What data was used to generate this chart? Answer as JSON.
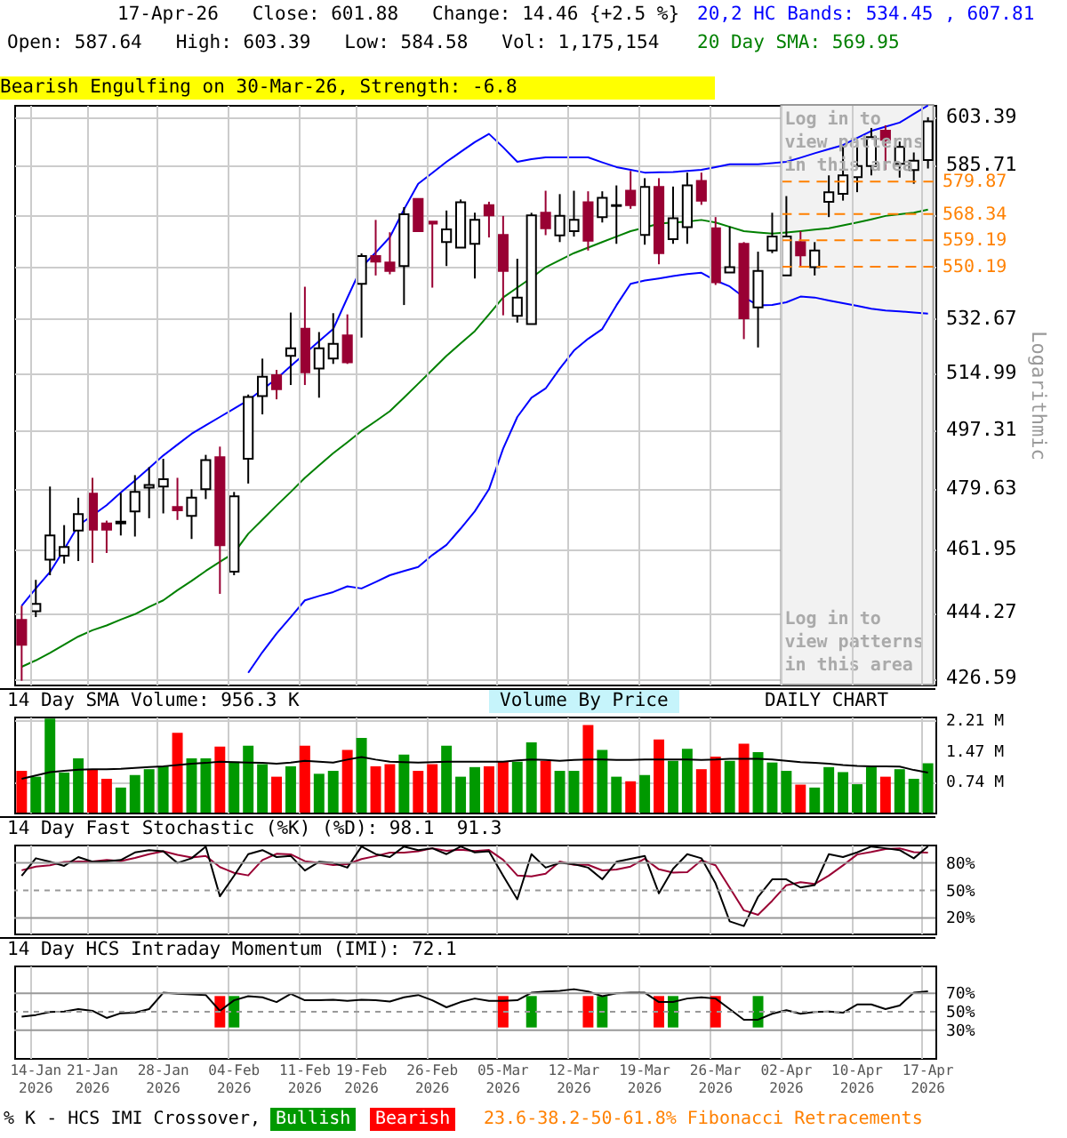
{
  "chart_data": [
    {
      "type": "candlestick",
      "title": "17-Apr-26   Close: 601.88   Change: 14.46 {+2.5 %}",
      "subtitle": "Open: 587.64   High: 603.39   Low: 584.58   Vol: 1,175,154",
      "annotations": [
        "20,2 HC Bands: 534.45 , 607.81",
        "20 Day SMA: 569.95",
        "Bearish Engulfing on 30-Mar-26, Strength: -6.8",
        "Log in to view patterns in this area",
        "Log in to view patterns in this area"
      ],
      "categories": [
        null,
        "14-Jan 2026",
        null,
        null,
        null,
        "21-Jan 2026",
        null,
        null,
        null,
        null,
        "28-Jan 2026",
        null,
        null,
        null,
        null,
        "04-Feb 2026",
        null,
        null,
        null,
        null,
        "11-Feb 2026",
        null,
        null,
        null,
        "19-Feb 2026",
        null,
        null,
        null,
        null,
        "26-Feb 2026",
        null,
        null,
        null,
        null,
        "05-Mar 2026",
        null,
        null,
        null,
        null,
        "12-Mar 2026",
        null,
        null,
        null,
        null,
        "19-Mar 2026",
        null,
        null,
        null,
        null,
        "26-Mar 2026",
        null,
        null,
        null,
        null,
        "02-Apr 2026",
        null,
        null,
        null,
        null,
        "10-Apr 2026",
        null,
        null,
        null,
        null,
        "17-Apr 2026"
      ],
      "ohlc": [
        [
          442.3,
          446.2,
          426.0,
          435.6
        ],
        [
          444.7,
          453.4,
          443.1,
          446.7
        ],
        [
          459.1,
          480.3,
          454.7,
          466.0
        ],
        [
          460.2,
          469.0,
          458.0,
          462.7
        ],
        [
          467.4,
          477.0,
          458.7,
          472.2
        ],
        [
          478.2,
          482.9,
          458.2,
          467.7
        ],
        [
          469.5,
          470.3,
          461.0,
          467.7
        ],
        [
          469.5,
          478.4,
          466.0,
          470.0
        ],
        [
          473.0,
          483.7,
          465.7,
          478.7
        ],
        [
          480.0,
          486.1,
          471.0,
          480.8
        ],
        [
          480.3,
          488.6,
          472.4,
          482.5
        ],
        [
          474.3,
          482.9,
          470.5,
          473.3
        ],
        [
          471.7,
          479.5,
          465.0,
          477.0
        ],
        [
          479.5,
          489.8,
          476.6,
          488.2
        ],
        [
          489.1,
          492.3,
          449.5,
          463.2
        ],
        [
          455.7,
          478.7,
          454.7,
          477.4
        ],
        [
          488.6,
          508.4,
          481.2,
          507.6
        ],
        [
          507.9,
          519.8,
          502.2,
          514.0
        ],
        [
          514.5,
          516.2,
          506.9,
          510.1
        ],
        [
          520.7,
          534.8,
          511.4,
          523.1
        ],
        [
          529.5,
          543.4,
          511.4,
          515.4
        ],
        [
          516.6,
          528.4,
          507.4,
          523.1
        ],
        [
          519.8,
          534.6,
          518.1,
          524.6
        ],
        [
          527.3,
          534.2,
          518.1,
          518.6
        ],
        [
          544.4,
          554.7,
          526.6,
          553.8
        ],
        [
          553.8,
          566.3,
          547.2,
          551.9
        ],
        [
          551.6,
          562.0,
          547.6,
          548.7
        ],
        [
          550.4,
          570.8,
          537.3,
          568.3
        ],
        [
          573.7,
          573.7,
          562.4,
          562.4
        ],
        [
          565.7,
          565.7,
          543.1,
          565.0
        ],
        [
          558.6,
          569.6,
          550.4,
          563.0
        ],
        [
          556.7,
          573.5,
          556.7,
          572.5
        ],
        [
          558.0,
          568.8,
          546.2,
          566.3
        ],
        [
          571.5,
          572.7,
          560.2,
          567.9
        ],
        [
          561.1,
          567.7,
          533.9,
          548.7
        ],
        [
          533.7,
          552.9,
          531.5,
          539.8
        ],
        [
          531.0,
          568.8,
          531.0,
          567.9
        ],
        [
          568.8,
          576.6,
          561.0,
          563.4
        ],
        [
          560.9,
          575.4,
          558.6,
          567.7
        ],
        [
          562.4,
          576.6,
          560.5,
          566.3
        ],
        [
          572.5,
          576.4,
          555.7,
          559.1
        ],
        [
          567.3,
          576.4,
          565.4,
          574.1
        ],
        [
          571.2,
          578.5,
          558.0,
          571.5
        ],
        [
          576.6,
          583.7,
          570.2,
          571.5
        ],
        [
          561.1,
          581.1,
          557.7,
          578.0
        ],
        [
          578.0,
          581.1,
          551.0,
          554.8
        ],
        [
          559.6,
          578.1,
          558.0,
          566.9
        ],
        [
          563.8,
          583.1,
          558.0,
          578.5
        ],
        [
          580.1,
          583.1,
          571.6,
          573.1
        ],
        [
          563.4,
          567.3,
          544.0,
          544.9
        ],
        [
          548.2,
          564.0,
          548.2,
          550.0
        ],
        [
          558.0,
          558.6,
          526.1,
          532.9
        ],
        [
          536.5,
          555.3,
          523.4,
          548.7
        ],
        [
          555.7,
          568.8,
          554.8,
          560.5
        ],
        [
          547.2,
          574.7,
          547.2,
          560.5
        ],
        [
          558.6,
          562.4,
          550.0,
          554.0
        ],
        [
          550.0,
          558.6,
          547.2,
          555.7
        ],
        [
          572.7,
          582.1,
          567.3,
          576.1
        ],
        [
          575.5,
          592.9,
          573.1,
          582.1
        ],
        [
          581.5,
          592.9,
          576.1,
          585.5
        ],
        [
          585.5,
          599.4,
          582.1,
          596.0
        ],
        [
          598.4,
          600.4,
          584.1,
          595.0
        ],
        [
          586.3,
          594.4,
          581.3,
          592.4
        ],
        [
          584.0,
          590.4,
          579.1,
          587.4
        ],
        [
          587.64,
          603.39,
          584.58,
          601.88
        ]
      ],
      "colors": [
        "#990033",
        "#ffffff",
        "#ffffff",
        "#ffffff",
        "#ffffff",
        "#990033",
        "#990033",
        "#ffffff",
        "#ffffff",
        "#ffffff",
        "#ffffff",
        "#990033",
        "#ffffff",
        "#ffffff",
        "#990033",
        "#ffffff",
        "#ffffff",
        "#ffffff",
        "#990033",
        "#ffffff",
        "#990033",
        "#ffffff",
        "#ffffff",
        "#990033",
        "#ffffff",
        "#990033",
        "#990033",
        "#ffffff",
        "#990033",
        "#990033",
        "#ffffff",
        "#ffffff",
        "#ffffff",
        "#990033",
        "#990033",
        "#ffffff",
        "#ffffff",
        "#990033",
        "#ffffff",
        "#ffffff",
        "#990033",
        "#ffffff",
        "#ffffff",
        "#990033",
        "#ffffff",
        "#990033",
        "#ffffff",
        "#ffffff",
        "#990033",
        "#990033",
        "#ffffff",
        "#990033",
        "#ffffff",
        "#ffffff",
        "#ffffff",
        "#990033",
        "#ffffff",
        "#ffffff",
        "#ffffff",
        "#ffffff",
        "#ffffff",
        "#990033",
        "#ffffff",
        "#ffffff",
        "#ffffff"
      ],
      "series": [
        {
          "type": "line",
          "color": "#0000ff",
          "values": [
            446.2,
            451.0,
            455.6,
            462.0,
            468.9,
            471.8,
            474.8,
            478.5,
            482.1,
            485.8,
            489.6,
            492.9,
            496.2,
            498.8,
            501.4,
            504.0,
            506.6,
            510.0,
            513.4,
            517.4,
            521.4,
            525.4,
            529.4,
            539.7,
            550.0,
            555.0,
            560.3,
            570.0,
            579.1,
            583.0,
            587.0,
            590.6,
            594.2,
            597.2,
            592.3,
            587.0,
            588.0,
            588.6,
            588.6,
            588.6,
            588.6,
            586.8,
            585.1,
            584.1,
            583.1,
            583.2,
            583.3,
            583.7,
            584.1,
            585.1,
            586.1,
            586.1,
            586.1,
            586.5,
            587.0,
            588.5,
            590.1,
            591.6,
            593.1,
            595.7,
            598.3,
            599.9,
            601.4,
            604.6,
            607.81
          ]
        },
        {
          "type": "line",
          "color": "#0000ff",
          "values": [
            null,
            null,
            null,
            null,
            null,
            null,
            null,
            null,
            null,
            null,
            null,
            null,
            null,
            null,
            null,
            null,
            428.1,
            433.6,
            438.6,
            443.1,
            447.7,
            448.9,
            450.0,
            451.6,
            451.0,
            452.8,
            454.7,
            455.9,
            457.0,
            460.4,
            463.3,
            468.0,
            473.0,
            479.5,
            491.7,
            501.4,
            507.4,
            510.3,
            516.6,
            522.4,
            526.2,
            529.4,
            537.2,
            544.4,
            545.5,
            546.2,
            547.0,
            547.7,
            548.1,
            545.5,
            543.5,
            539.9,
            537.2,
            537.3,
            538.2,
            540.1,
            539.8,
            538.8,
            537.9,
            537.0,
            536.1,
            535.5,
            535.2,
            534.8,
            534.45
          ]
        },
        {
          "type": "line",
          "color": "#008000",
          "values": [
            429.7,
            431.4,
            433.4,
            435.6,
            437.8,
            439.5,
            440.8,
            442.4,
            443.9,
            445.9,
            447.7,
            450.5,
            453.1,
            455.9,
            458.5,
            461.0,
            466.5,
            470.6,
            474.7,
            478.7,
            482.9,
            486.6,
            490.3,
            493.6,
            497.1,
            500.1,
            503.2,
            507.4,
            511.8,
            516.2,
            520.7,
            524.7,
            528.7,
            534.2,
            539.8,
            543.1,
            546.4,
            550.0,
            552.4,
            554.8,
            556.7,
            558.6,
            560.5,
            562.4,
            563.6,
            565.0,
            565.4,
            565.7,
            566.3,
            565.4,
            563.9,
            562.4,
            561.9,
            561.5,
            561.9,
            562.4,
            562.9,
            563.4,
            564.4,
            565.4,
            566.5,
            567.7,
            568.3,
            568.8,
            569.95
          ]
        }
      ],
      "ylim": [
        425,
        608
      ],
      "yticks": [
        426.59,
        444.27,
        461.95,
        479.63,
        497.31,
        514.99,
        532.67,
        {
          "value": 550.35,
          "label": null
        },
        {
          "value": 568.03,
          "label": null
        },
        585.71,
        603.39
      ],
      "ylabel": "Logarithmic",
      "log": "y",
      "grid": true,
      "tick_labels": "y",
      "ref_lines": [
        {
          "axis": "y",
          "value": 579.87,
          "label": "579.87",
          "color": "#ff8000",
          "line_style": "dashed"
        },
        {
          "axis": "y",
          "value": 568.34,
          "label": "568.34",
          "color": "#ff8000",
          "line_style": "dashed"
        },
        {
          "axis": "y",
          "value": 559.19,
          "label": "559.19",
          "color": "#ff8000",
          "line_style": "dashed"
        },
        {
          "axis": "y",
          "value": 550.19,
          "label": "550.19",
          "color": "#ff8000",
          "line_style": "dashed"
        }
      ],
      "bands": [
        {
          "axis": "x",
          "from": "02-Apr 2026",
          "to": "17-Apr 2026",
          "color": "#f2f2f2"
        }
      ]
    },
    {
      "type": "bar",
      "title": "14 Day SMA Volume: 956.3 K",
      "annotations": [
        "Volume By Price",
        "DAILY CHART"
      ],
      "categories": [
        null,
        "14-Jan 2026",
        null,
        null,
        null,
        "21-Jan 2026",
        null,
        null,
        null,
        null,
        "28-Jan 2026",
        null,
        null,
        null,
        null,
        "04-Feb 2026",
        null,
        null,
        null,
        null,
        "11-Feb 2026",
        null,
        null,
        null,
        "19-Feb 2026",
        null,
        null,
        null,
        null,
        "26-Feb 2026",
        null,
        null,
        null,
        null,
        "05-Mar 2026",
        null,
        null,
        null,
        null,
        "12-Mar 2026",
        null,
        null,
        null,
        null,
        "19-Mar 2026",
        null,
        null,
        null,
        null,
        "26-Mar 2026",
        null,
        null,
        null,
        null,
        "02-Apr 2026",
        null,
        null,
        null,
        null,
        "10-Apr 2026",
        null,
        null,
        null,
        null,
        "17-Apr 2026"
      ],
      "series": [
        {
          "values": [
            1.0,
            0.86,
            2.25,
            0.96,
            1.3,
            1.04,
            0.81,
            0.6,
            0.9,
            1.04,
            1.11,
            1.91,
            1.3,
            1.3,
            1.58,
            1.22,
            1.6,
            1.16,
            0.86,
            1.11,
            1.6,
            0.93,
            1.0,
            1.5,
            1.79,
            1.11,
            1.16,
            1.39,
            1.0,
            1.16,
            1.6,
            0.86,
            1.09,
            1.11,
            1.22,
            1.22,
            1.68,
            1.24,
            1.0,
            1.0,
            2.1,
            1.5,
            0.86,
            0.75,
            0.9,
            1.75,
            1.24,
            1.53,
            1.04,
            1.34,
            1.24,
            1.65,
            1.45,
            1.2,
            1.0,
            0.67,
            0.6,
            1.09,
            0.97,
            0.68,
            1.09,
            0.86,
            1.04,
            0.81,
            1.18
          ],
          "colors": [
            "#ff0000",
            "#009900",
            "#009900",
            "#009900",
            "#009900",
            "#ff0000",
            "#ff0000",
            "#009900",
            "#009900",
            "#009900",
            "#009900",
            "#ff0000",
            "#009900",
            "#009900",
            "#ff0000",
            "#009900",
            "#009900",
            "#009900",
            "#ff0000",
            "#009900",
            "#ff0000",
            "#009900",
            "#009900",
            "#ff0000",
            "#009900",
            "#ff0000",
            "#ff0000",
            "#009900",
            "#ff0000",
            "#ff0000",
            "#009900",
            "#009900",
            "#009900",
            "#ff0000",
            "#ff0000",
            "#009900",
            "#009900",
            "#ff0000",
            "#009900",
            "#009900",
            "#ff0000",
            "#009900",
            "#009900",
            "#ff0000",
            "#009900",
            "#ff0000",
            "#009900",
            "#009900",
            "#ff0000",
            "#ff0000",
            "#009900",
            "#ff0000",
            "#009900",
            "#009900",
            "#009900",
            "#ff0000",
            "#009900",
            "#009900",
            "#009900",
            "#009900",
            "#009900",
            "#ff0000",
            "#009900",
            "#009900",
            "#009900"
          ]
        },
        {
          "type": "line",
          "color": "#000000",
          "values": [
            0.81,
            0.89,
            0.97,
            1.0,
            1.03,
            1.04,
            1.04,
            1.05,
            1.07,
            1.09,
            1.11,
            1.14,
            1.17,
            1.19,
            1.22,
            1.21,
            1.2,
            1.19,
            1.17,
            1.2,
            1.24,
            1.22,
            1.2,
            1.27,
            1.33,
            1.27,
            1.22,
            1.21,
            1.2,
            1.21,
            1.22,
            1.22,
            1.22,
            1.22,
            1.22,
            1.25,
            1.27,
            1.26,
            1.24,
            1.26,
            1.27,
            1.27,
            1.26,
            1.26,
            1.27,
            1.27,
            1.27,
            1.27,
            1.26,
            1.27,
            1.29,
            1.29,
            1.29,
            1.27,
            1.24,
            1.21,
            1.19,
            1.17,
            1.14,
            1.12,
            1.11,
            1.11,
            1.1,
            1.02,
            0.96
          ]
        }
      ],
      "ylim": [
        0,
        2.3
      ],
      "yticks": [
        {
          "value": 0.74,
          "label": "0.74 M"
        },
        {
          "value": 1.47,
          "label": "1.47 M"
        },
        {
          "value": 2.21,
          "label": "2.21 M"
        }
      ],
      "grid": true,
      "tick_labels": "y"
    },
    {
      "type": "line",
      "title": "14 Day Fast Stochastic (%K) (%D): 98.1  91.3",
      "categories": [
        null,
        "14-Jan 2026",
        null,
        null,
        null,
        "21-Jan 2026",
        null,
        null,
        null,
        null,
        "28-Jan 2026",
        null,
        null,
        null,
        null,
        "04-Feb 2026",
        null,
        null,
        null,
        null,
        "11-Feb 2026",
        null,
        null,
        null,
        "19-Feb 2026",
        null,
        null,
        null,
        null,
        "26-Feb 2026",
        null,
        null,
        null,
        null,
        "05-Mar 2026",
        null,
        null,
        null,
        null,
        "12-Mar 2026",
        null,
        null,
        null,
        null,
        "19-Mar 2026",
        null,
        null,
        null,
        null,
        "26-Mar 2026",
        null,
        null,
        null,
        null,
        "02-Apr 2026",
        null,
        null,
        null,
        null,
        "10-Apr 2026",
        null,
        null,
        null,
        null,
        "17-Apr 2026"
      ],
      "series": [
        {
          "color": "#990033",
          "values": [
            72,
            76,
            77.5,
            81.1,
            81.5,
            81.5,
            83.2,
            82.1,
            85.5,
            89.6,
            92.8,
            88.9,
            86.0,
            87.7,
            75.5,
            69.2,
            66.4,
            83.2,
            90.0,
            89.4,
            81.9,
            80.2,
            77.7,
            78.7,
            84.3,
            87.5,
            91.3,
            91.3,
            92.8,
            96.0,
            93.2,
            94.5,
            93.0,
            94.1,
            83.4,
            66.4,
            65.3,
            68.3,
            81.5,
            77.9,
            77.9,
            71.9,
            72.8,
            76.0,
            84.5,
            73.0,
            69.4,
            70.0,
            82.8,
            77.5,
            53.0,
            28.3,
            23.4,
            38.7,
            55.7,
            59.1,
            57.0,
            66.2,
            77.3,
            89.2,
            91.9,
            95.1,
            96.0,
            91.7,
            91.3
          ]
        },
        {
          "color": "#000000",
          "values": [
            66.0,
            85.1,
            81.3,
            76.8,
            86.4,
            81.3,
            81.9,
            83.2,
            91.5,
            94.0,
            92.8,
            80.0,
            85.1,
            97.9,
            43.6,
            66.0,
            89.6,
            94.0,
            86.4,
            87.7,
            71.7,
            81.3,
            80.0,
            74.9,
            97.9,
            89.6,
            86.4,
            97.9,
            94.0,
            96.0,
            89.6,
            97.9,
            91.5,
            92.8,
            66.0,
            40.4,
            89.6,
            74.9,
            80.0,
            78.7,
            74.9,
            62.1,
            81.3,
            84.5,
            87.7,
            46.8,
            73.6,
            89.6,
            85.1,
            57.7,
            16.2,
            11.1,
            43.0,
            62.1,
            62.1,
            53.2,
            55.8,
            89.6,
            86.4,
            91.5,
            97.9,
            96.0,
            94.0,
            85.1,
            98.1
          ]
        }
      ],
      "ylim": [
        3,
        100
      ],
      "yticks": [
        {
          "value": 20,
          "label": "20%"
        },
        {
          "value": 50,
          "label": "50%"
        },
        {
          "value": 80,
          "label": "80%"
        }
      ],
      "grid": "x",
      "tick_labels": "y",
      "ref_lines": [
        {
          "axis": "y",
          "value": 80,
          "color": "#999999"
        },
        {
          "axis": "y",
          "value": 50,
          "color": "#999999",
          "line_style": "dashed"
        },
        {
          "axis": "y",
          "value": 20,
          "color": "#999999"
        }
      ]
    },
    {
      "type": "line",
      "title": "14 Day HCS Intraday Momentum (IMI): 72.1",
      "annotations": [
        "23.6-38.2-50-61.8% Fibonacci Retracements"
      ],
      "categories": [
        null,
        "14-Jan 2026",
        null,
        null,
        null,
        "21-Jan 2026",
        null,
        null,
        null,
        null,
        "28-Jan 2026",
        null,
        null,
        null,
        null,
        "04-Feb 2026",
        null,
        null,
        null,
        null,
        "11-Feb 2026",
        null,
        null,
        null,
        "19-Feb 2026",
        null,
        null,
        null,
        null,
        "26-Feb 2026",
        null,
        null,
        null,
        null,
        "05-Mar 2026",
        null,
        null,
        null,
        null,
        "12-Mar 2026",
        null,
        null,
        null,
        null,
        "19-Mar 2026",
        null,
        null,
        null,
        null,
        "26-Mar 2026",
        null,
        null,
        null,
        null,
        "02-Apr 2026",
        null,
        null,
        null,
        null,
        "10-Apr 2026",
        null,
        null,
        null,
        null,
        "17-Apr 2026"
      ],
      "series": [
        {
          "name": "Bullish",
          "type": "bar",
          "color": "#009900",
          "values": [
            null,
            null,
            null,
            null,
            null,
            null,
            null,
            null,
            null,
            null,
            null,
            null,
            null,
            null,
            null,
            34,
            null,
            null,
            null,
            null,
            null,
            null,
            null,
            null,
            null,
            null,
            null,
            null,
            null,
            null,
            null,
            null,
            null,
            null,
            null,
            null,
            34,
            null,
            null,
            null,
            null,
            34,
            null,
            null,
            null,
            null,
            34,
            null,
            null,
            null,
            null,
            null,
            34,
            null,
            null,
            null,
            null,
            null,
            null,
            null,
            null,
            null,
            null,
            null,
            null
          ],
          "base": [
            null,
            null,
            null,
            null,
            null,
            null,
            null,
            null,
            null,
            null,
            null,
            null,
            null,
            null,
            null,
            33,
            null,
            null,
            null,
            null,
            null,
            null,
            null,
            null,
            null,
            null,
            null,
            null,
            null,
            null,
            null,
            null,
            null,
            null,
            null,
            null,
            33,
            null,
            null,
            null,
            null,
            33,
            null,
            null,
            null,
            null,
            33,
            null,
            null,
            null,
            null,
            null,
            33,
            null,
            null,
            null,
            null,
            null,
            null,
            null,
            null,
            null,
            null,
            null,
            null
          ]
        },
        {
          "name": "Bearish",
          "type": "bar",
          "color": "#ff0000",
          "values": [
            null,
            null,
            null,
            null,
            null,
            null,
            null,
            null,
            null,
            null,
            null,
            null,
            null,
            null,
            34,
            null,
            null,
            null,
            null,
            null,
            null,
            null,
            null,
            null,
            null,
            null,
            null,
            null,
            null,
            null,
            null,
            null,
            null,
            null,
            34,
            null,
            null,
            null,
            null,
            null,
            34,
            null,
            null,
            null,
            null,
            34,
            null,
            null,
            null,
            34,
            null,
            null,
            null,
            null,
            null,
            null,
            null,
            null,
            null,
            null,
            null,
            null,
            null,
            null,
            null
          ],
          "base": [
            null,
            null,
            null,
            null,
            null,
            null,
            null,
            null,
            null,
            null,
            null,
            null,
            null,
            null,
            33,
            null,
            null,
            null,
            null,
            null,
            null,
            null,
            null,
            null,
            null,
            null,
            null,
            null,
            null,
            null,
            null,
            null,
            null,
            null,
            33,
            null,
            null,
            null,
            null,
            null,
            33,
            null,
            null,
            null,
            null,
            33,
            null,
            null,
            null,
            33,
            null,
            null,
            null,
            null,
            null,
            null,
            null,
            null,
            null,
            null,
            null,
            null,
            null,
            null,
            null
          ]
        },
        {
          "color": "#000000",
          "values": [
            44.6,
            46.5,
            49.7,
            50.3,
            52.9,
            51.0,
            43.3,
            48.4,
            49.0,
            52.9,
            70.6,
            69.4,
            68.7,
            68.1,
            51.0,
            62.4,
            66.8,
            65.6,
            60.5,
            69.4,
            62.4,
            62.4,
            63.0,
            61.7,
            63.0,
            62.4,
            61.1,
            65.6,
            68.1,
            62.4,
            54.8,
            60.5,
            64.3,
            61.7,
            61.7,
            62.4,
            70.6,
            71.9,
            72.5,
            74.4,
            71.9,
            66.8,
            70.0,
            70.6,
            70.6,
            60.5,
            60.5,
            64.3,
            65.6,
            64.3,
            52.9,
            41.4,
            41.4,
            47.8,
            51.6,
            47.8,
            49.7,
            50.3,
            49.0,
            57.9,
            57.9,
            52.9,
            56.7,
            70.6,
            72.1
          ]
        }
      ],
      "legend": "bottom left",
      "legend_title": "% K - HCS IMI Crossover,",
      "ylim": [
        0,
        100
      ],
      "yticks": [
        {
          "value": 30,
          "label": "30%"
        },
        {
          "value": 50,
          "label": "50%"
        },
        {
          "value": 70,
          "label": "70%"
        }
      ],
      "grid": "x",
      "ref_lines": [
        {
          "axis": "y",
          "value": 70,
          "color": "#999999"
        },
        {
          "axis": "y",
          "value": 50,
          "color": "#999999",
          "line_style": "dashed"
        },
        {
          "axis": "y",
          "value": 30,
          "color": "#999999"
        }
      ]
    }
  ]
}
